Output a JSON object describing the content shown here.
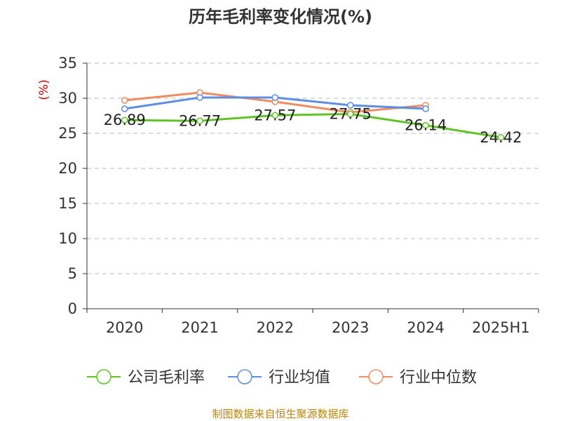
{
  "chart_data": {
    "type": "line",
    "title": "历年毛利率变化情况(%)",
    "ylabel": "(%)",
    "xlabel": "",
    "categories": [
      "2020",
      "2021",
      "2022",
      "2023",
      "2024",
      "2025H1"
    ],
    "ylim": [
      0,
      35
    ],
    "yticks": [
      0,
      5,
      10,
      15,
      20,
      25,
      30,
      35
    ],
    "grid": true,
    "legend_position": "bottom",
    "series": [
      {
        "name": "公司毛利率",
        "color": "#5ec424",
        "values": [
          26.89,
          26.77,
          27.57,
          27.75,
          26.14,
          24.42
        ],
        "labels": [
          "26.89",
          "26.77",
          "27.57",
          "27.75",
          "26.14",
          "24.42"
        ]
      },
      {
        "name": "行业均值",
        "color": "#5b8ee6",
        "values": [
          28.5,
          30.1,
          30.1,
          29.0,
          28.5,
          null
        ]
      },
      {
        "name": "行业中位数",
        "color": "#f28c5e",
        "values": [
          29.7,
          30.8,
          29.5,
          28.0,
          29.0,
          null
        ]
      }
    ]
  },
  "source": "制图数据来自恒生聚源数据库"
}
